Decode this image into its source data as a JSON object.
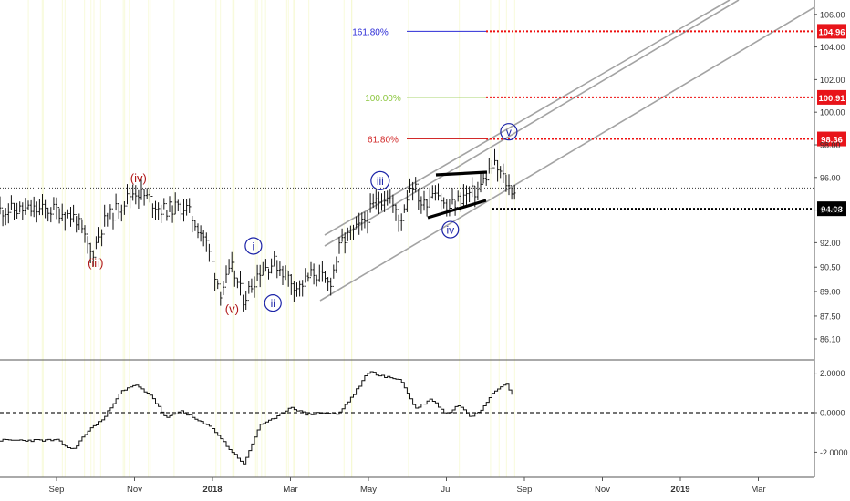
{
  "chart_data": {
    "type": "line",
    "price_axis": {
      "ticks": [
        "106.00",
        "104.00",
        "102.00",
        "100.00",
        "98.00",
        "96.00",
        "94.00",
        "92.00",
        "90.50",
        "89.00",
        "87.50",
        "86.10"
      ],
      "tick_values": [
        106.0,
        104.0,
        102.0,
        100.0,
        98.0,
        96.0,
        94.0,
        92.0,
        90.5,
        89.0,
        87.5,
        86.1
      ],
      "range": [
        85.6,
        106.2
      ]
    },
    "oscillator_axis": {
      "ticks": [
        "2.0000",
        "0.0000",
        "-2.0000"
      ],
      "tick_values": [
        2.0,
        0.0,
        -2.0
      ],
      "range": [
        -3.0,
        2.6
      ]
    },
    "time_axis": {
      "labels": [
        "Sep",
        "Nov",
        "2018",
        "Mar",
        "May",
        "Jul",
        "Sep",
        "Nov",
        "2019",
        "Mar"
      ],
      "months": [
        0,
        2,
        4,
        6,
        8,
        10,
        12,
        14,
        16,
        18
      ],
      "bold": [
        "2018",
        "2019"
      ]
    },
    "price_series": {
      "months": [
        0,
        0.5,
        0.9,
        1.2,
        1.6,
        2.0,
        2.3,
        2.7,
        3.3,
        3.8,
        4.2,
        4.5,
        4.8,
        5.2,
        5.6,
        5.9,
        6.2,
        6.6,
        7.0,
        7.3,
        7.8,
        8.2,
        8.5,
        8.8,
        9.1,
        9.4,
        9.7,
        10.0,
        10.4,
        10.8,
        11.2,
        11.4,
        11.6,
        11.75
      ],
      "values": [
        94.0,
        93.5,
        91.2,
        93.2,
        94.2,
        95.2,
        94.8,
        94.0,
        94.2,
        92.3,
        89.0,
        90.4,
        88.5,
        90.3,
        90.8,
        90.0,
        89.2,
        90.2,
        89.4,
        92.0,
        93.0,
        94.5,
        95.0,
        93.2,
        95.8,
        94.2,
        95.5,
        94.0,
        94.8,
        95.2,
        96.8,
        96.2,
        95.4,
        95.2
      ]
    },
    "oscillator_series": {
      "months": [
        0,
        0.4,
        0.8,
        1.2,
        1.6,
        2.0,
        2.4,
        2.8,
        3.2,
        3.6,
        4.0,
        4.4,
        4.8,
        5.2,
        5.6,
        6.0,
        6.4,
        6.8,
        7.2,
        7.6,
        8.0,
        8.4,
        8.8,
        9.2,
        9.6,
        10.0,
        10.3,
        10.6,
        10.9,
        11.2,
        11.5,
        11.7
      ],
      "values": [
        -1.4,
        -1.9,
        -0.9,
        -0.3,
        1.0,
        1.4,
        0.9,
        -0.3,
        0.1,
        -0.4,
        -0.8,
        -1.8,
        -2.6,
        -0.6,
        -0.3,
        0.3,
        -0.1,
        0.0,
        -0.1,
        0.9,
        2.1,
        1.8,
        1.7,
        0.2,
        0.7,
        -0.1,
        0.4,
        -0.2,
        0.2,
        1.1,
        1.5,
        0.8
      ]
    },
    "fib_levels": [
      {
        "label": "161.80%",
        "box": "104.96",
        "value": 104.96,
        "color": "#2b2bd6"
      },
      {
        "label": "100.00%",
        "box": "100.91",
        "value": 100.91,
        "color": "#8cc63f"
      },
      {
        "label": "61.80%",
        "box": "98.36",
        "value": 98.36,
        "color": "#d22a2a"
      }
    ],
    "current_price": {
      "box": "94.08",
      "value": 94.08
    },
    "horizontal_line": {
      "value": 95.35
    },
    "waves_red": [
      {
        "label": "(iii)",
        "month": 1.0,
        "value": 90.5
      },
      {
        "label": "(iv)",
        "month": 2.1,
        "value": 95.7
      },
      {
        "label": "(v)",
        "month": 4.5,
        "value": 87.7
      }
    ],
    "waves_blue": [
      {
        "label": "i",
        "month": 5.05,
        "value": 91.8
      },
      {
        "label": "ii",
        "month": 5.55,
        "value": 88.3
      },
      {
        "label": "iii",
        "month": 8.3,
        "value": 95.8
      },
      {
        "label": "iv",
        "month": 10.1,
        "value": 92.8
      },
      {
        "label": "v",
        "month": 11.6,
        "value": 98.8
      }
    ],
    "colors": {
      "up": "#000000",
      "red_label": "#b01616",
      "blue_label": "#1c24a8",
      "channel": "#a3a3a3",
      "fib_dotted": "#ee1111"
    }
  }
}
